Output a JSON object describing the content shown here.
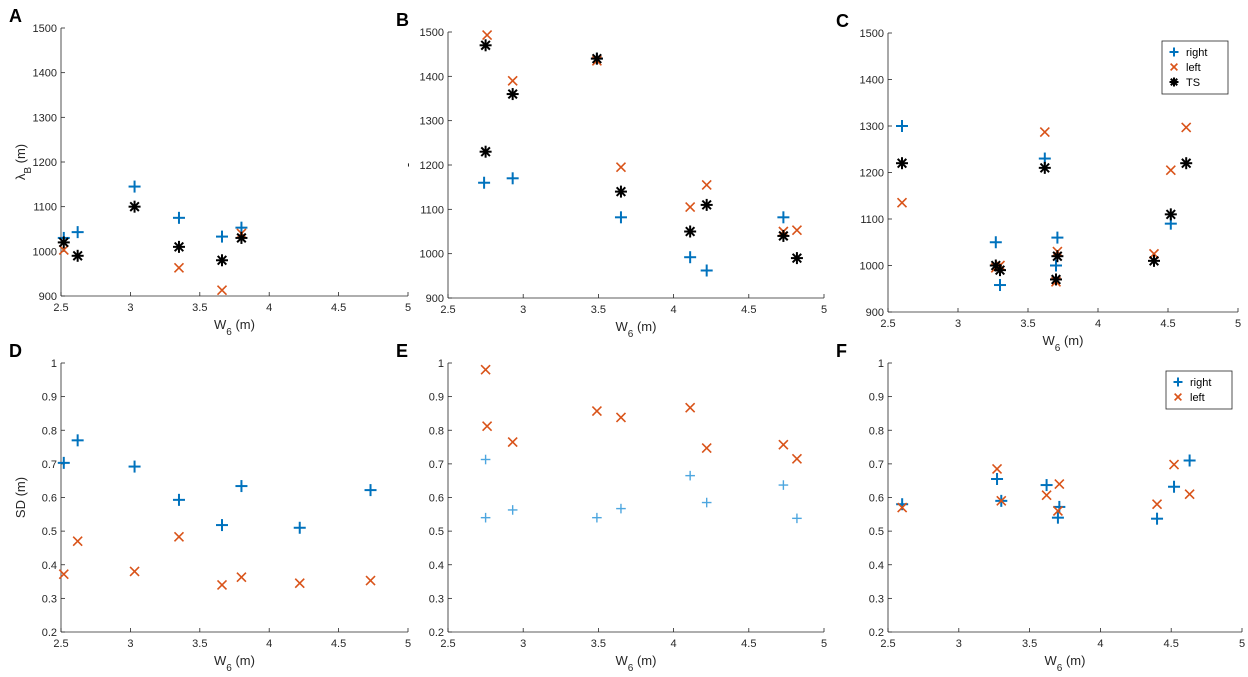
{
  "colors": {
    "right": "#0072BD",
    "left": "#D95319",
    "ts": "#000000",
    "right_light": "#4DA6DF"
  },
  "chart_data": [
    {
      "type": "scatter",
      "panel": "A",
      "xlabel_main": "W",
      "xlabel_sub": "6",
      "xlabel_unit": " (m)",
      "ylabel_main": "λ",
      "ylabel_sub": "B",
      "ylabel_unit": " (m)",
      "xlim": [
        2.5,
        5
      ],
      "ylim": [
        900,
        1500
      ],
      "xticks": [
        2.5,
        3,
        3.5,
        4,
        4.5,
        5
      ],
      "xtick_labels": [
        "2.5",
        "3",
        "3.5",
        "4",
        "4.5",
        "5"
      ],
      "yticks": [
        900,
        1000,
        1100,
        1200,
        1300,
        1400,
        1500
      ],
      "ytick_labels": [
        "900",
        "1000",
        "1100",
        "1200",
        "1300",
        "1400",
        "1500"
      ],
      "series": [
        {
          "name": "right",
          "marker": "plus",
          "x": [
            2.52,
            2.62,
            3.03,
            3.35,
            3.66,
            3.8
          ],
          "y": [
            1030,
            1043,
            1145,
            1075,
            1033,
            1053
          ]
        },
        {
          "name": "left",
          "marker": "x",
          "x": [
            2.52,
            3.35,
            3.66,
            3.8
          ],
          "y": [
            1003,
            963,
            913,
            1040
          ]
        },
        {
          "name": "TS",
          "marker": "star",
          "x": [
            2.52,
            2.62,
            3.03,
            3.35,
            3.66,
            3.8
          ],
          "y": [
            1020,
            990,
            1100,
            1010,
            980,
            1030
          ]
        }
      ]
    },
    {
      "type": "scatter",
      "panel": "B",
      "xlabel_main": "W",
      "xlabel_sub": "6",
      "xlabel_unit": " (m)",
      "ylabel_main": "-",
      "ylabel_sub": "",
      "ylabel_unit": "",
      "xlim": [
        2.5,
        5
      ],
      "ylim": [
        900,
        1500
      ],
      "xticks": [
        2.5,
        3,
        3.5,
        4,
        4.5,
        5
      ],
      "xtick_labels": [
        "2.5",
        "3",
        "3.5",
        "4",
        "4.5",
        "5"
      ],
      "yticks": [
        900,
        1000,
        1100,
        1200,
        1300,
        1400,
        1500
      ],
      "ytick_labels": [
        "900",
        "1000",
        "1100",
        "1200",
        "1300",
        "1400",
        "1500"
      ],
      "series": [
        {
          "name": "right",
          "marker": "plus",
          "x": [
            2.74,
            2.93,
            3.49,
            3.65,
            4.11,
            4.22,
            4.73
          ],
          "y": [
            1160,
            1170,
            1440,
            1082,
            992,
            962,
            1082
          ]
        },
        {
          "name": "left",
          "marker": "x",
          "x": [
            2.76,
            2.93,
            3.49,
            3.65,
            4.11,
            4.22,
            4.73,
            4.82
          ],
          "y": [
            1493,
            1390,
            1435,
            1195,
            1105,
            1155,
            1050,
            1053
          ]
        },
        {
          "name": "TS",
          "marker": "star",
          "x": [
            2.75,
            2.75,
            2.93,
            3.49,
            3.65,
            4.11,
            4.22,
            4.73,
            4.82
          ],
          "y": [
            1470,
            1230,
            1360,
            1440,
            1140,
            1050,
            1110,
            1040,
            990
          ]
        }
      ]
    },
    {
      "type": "scatter",
      "panel": "C",
      "xlabel_main": "W",
      "xlabel_sub": "6",
      "xlabel_unit": " (m)",
      "ylabel_main": "",
      "ylabel_sub": "",
      "ylabel_unit": "",
      "xlim": [
        2.5,
        5
      ],
      "ylim": [
        900,
        1500
      ],
      "xticks": [
        2.5,
        3,
        3.5,
        4,
        4.5,
        5
      ],
      "xtick_labels": [
        "2.5",
        "3",
        "3.5",
        "4",
        "4.5",
        "5"
      ],
      "yticks": [
        900,
        1000,
        1100,
        1200,
        1300,
        1400,
        1500
      ],
      "ytick_labels": [
        "900",
        "1000",
        "1100",
        "1200",
        "1300",
        "1400",
        "1500"
      ],
      "legend": {
        "position": "top-right",
        "entries": [
          "right",
          "left",
          "TS"
        ]
      },
      "series": [
        {
          "name": "right",
          "marker": "plus",
          "x": [
            2.6,
            3.27,
            3.3,
            3.62,
            3.7,
            3.71,
            4.52
          ],
          "y": [
            1300,
            1050,
            958,
            1230,
            1000,
            1060,
            1090
          ]
        },
        {
          "name": "left",
          "marker": "x",
          "x": [
            2.6,
            3.27,
            3.3,
            3.62,
            3.7,
            3.71,
            4.4,
            4.52,
            4.63
          ],
          "y": [
            1135,
            995,
            1000,
            1287,
            965,
            1030,
            1025,
            1205,
            1297
          ]
        },
        {
          "name": "TS",
          "marker": "star",
          "x": [
            2.6,
            3.27,
            3.3,
            3.62,
            3.7,
            3.71,
            4.4,
            4.52,
            4.63
          ],
          "y": [
            1220,
            1000,
            990,
            1210,
            970,
            1020,
            1010,
            1110,
            1220
          ]
        }
      ]
    },
    {
      "type": "scatter",
      "panel": "D",
      "xlabel_main": "W",
      "xlabel_sub": "6",
      "xlabel_unit": " (m)",
      "ylabel_main": "SD (m)",
      "ylabel_sub": "",
      "ylabel_unit": "",
      "xlim": [
        2.5,
        5
      ],
      "ylim": [
        0.2,
        1
      ],
      "xticks": [
        2.5,
        3,
        3.5,
        4,
        4.5,
        5
      ],
      "xtick_labels": [
        "2.5",
        "3",
        "3.5",
        "4",
        "4.5",
        "5"
      ],
      "yticks": [
        0.2,
        0.3,
        0.4,
        0.5,
        0.6,
        0.7,
        0.8,
        0.9,
        1
      ],
      "ytick_labels": [
        "0.2",
        "0.3",
        "0.4",
        "0.5",
        "0.6",
        "0.7",
        "0.8",
        "0.9",
        "1"
      ],
      "series": [
        {
          "name": "right",
          "marker": "plus",
          "x": [
            2.52,
            2.62,
            3.03,
            3.35,
            3.66,
            3.8,
            4.22,
            4.73
          ],
          "y": [
            0.703,
            0.77,
            0.692,
            0.593,
            0.518,
            0.634,
            0.51,
            0.622
          ]
        },
        {
          "name": "left",
          "marker": "x",
          "x": [
            2.52,
            2.62,
            3.03,
            3.35,
            3.66,
            3.8,
            4.22,
            4.73
          ],
          "y": [
            0.372,
            0.47,
            0.38,
            0.483,
            0.34,
            0.363,
            0.345,
            0.353
          ]
        }
      ]
    },
    {
      "type": "scatter",
      "panel": "E",
      "xlabel_main": "W",
      "xlabel_sub": "6",
      "xlabel_unit": " (m)",
      "ylabel_main": "",
      "ylabel_sub": "",
      "ylabel_unit": "",
      "xlim": [
        2.5,
        5
      ],
      "ylim": [
        0.2,
        1
      ],
      "xticks": [
        2.5,
        3,
        3.5,
        4,
        4.5,
        5
      ],
      "xtick_labels": [
        "2.5",
        "3",
        "3.5",
        "4",
        "4.5",
        "5"
      ],
      "yticks": [
        0.2,
        0.3,
        0.4,
        0.5,
        0.6,
        0.7,
        0.8,
        0.9,
        1
      ],
      "ytick_labels": [
        "0.2",
        "0.3",
        "0.4",
        "0.5",
        "0.6",
        "0.7",
        "0.8",
        "0.9",
        "1"
      ],
      "series": [
        {
          "name": "right",
          "marker": "plus-light",
          "x": [
            2.75,
            2.75,
            2.93,
            3.49,
            3.65,
            4.11,
            4.22,
            4.73,
            4.82
          ],
          "y": [
            0.713,
            0.54,
            0.563,
            0.54,
            0.567,
            0.665,
            0.585,
            0.637,
            0.538
          ]
        },
        {
          "name": "left",
          "marker": "x",
          "x": [
            2.75,
            2.76,
            2.93,
            3.49,
            3.65,
            4.11,
            4.22,
            4.73,
            4.82
          ],
          "y": [
            0.98,
            0.812,
            0.765,
            0.857,
            0.838,
            0.867,
            0.747,
            0.757,
            0.715
          ]
        }
      ]
    },
    {
      "type": "scatter",
      "panel": "F",
      "xlabel_main": "W",
      "xlabel_sub": "6",
      "xlabel_unit": " (m)",
      "ylabel_main": "",
      "ylabel_sub": "",
      "ylabel_unit": "",
      "xlim": [
        2.5,
        5
      ],
      "ylim": [
        0.2,
        1
      ],
      "xticks": [
        2.5,
        3,
        3.5,
        4,
        4.5,
        5
      ],
      "xtick_labels": [
        "2.5",
        "3",
        "3.5",
        "4",
        "4.5",
        "5"
      ],
      "yticks": [
        0.2,
        0.3,
        0.4,
        0.5,
        0.6,
        0.7,
        0.8,
        0.9,
        1
      ],
      "ytick_labels": [
        "0.2",
        "0.3",
        "0.4",
        "0.5",
        "0.6",
        "0.7",
        "0.8",
        "0.9",
        "1"
      ],
      "legend": {
        "position": "top-right",
        "entries": [
          "right",
          "left"
        ]
      },
      "series": [
        {
          "name": "right",
          "marker": "plus",
          "x": [
            2.6,
            3.27,
            3.3,
            3.62,
            3.7,
            3.71,
            4.4,
            4.52,
            4.63
          ],
          "y": [
            0.58,
            0.655,
            0.59,
            0.637,
            0.54,
            0.572,
            0.537,
            0.632,
            0.71
          ]
        },
        {
          "name": "left",
          "marker": "x",
          "x": [
            2.6,
            3.27,
            3.3,
            3.62,
            3.7,
            3.71,
            4.4,
            4.52,
            4.63
          ],
          "y": [
            0.57,
            0.685,
            0.59,
            0.607,
            0.56,
            0.64,
            0.58,
            0.698,
            0.61
          ]
        }
      ]
    }
  ]
}
